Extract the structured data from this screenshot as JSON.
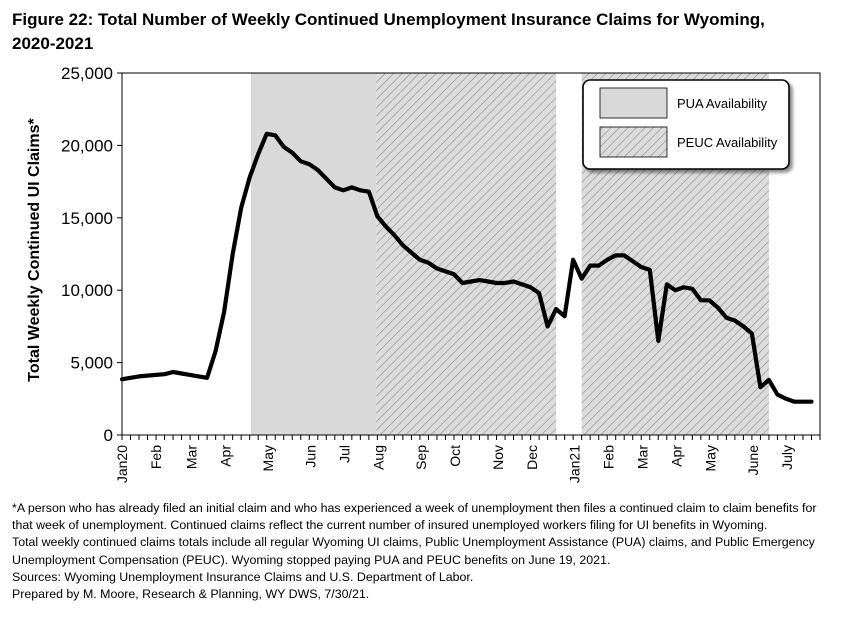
{
  "title": "Figure 22: Total Number of Weekly Continued Unemployment Insurance Claims for Wyoming, 2020-2021",
  "chart_data": {
    "type": "line",
    "ylabel": "Total Weekly Continued UI Claims*",
    "xlabel": "",
    "ylim": [
      0,
      25000
    ],
    "yticks": [
      0,
      5000,
      10000,
      15000,
      20000,
      25000
    ],
    "ytick_labels": [
      "0",
      "5,000",
      "10,000",
      "15,000",
      "20,000",
      "25,000"
    ],
    "xlim": [
      "2020-01-04",
      "2021-07-31"
    ],
    "month_ticks": [
      {
        "label": "Jan20",
        "date": "2020-01-04"
      },
      {
        "label": "Feb",
        "date": "2020-02-01"
      },
      {
        "label": "Mar",
        "date": "2020-03-01"
      },
      {
        "label": "Apr",
        "date": "2020-03-29"
      },
      {
        "label": "May",
        "date": "2020-05-03"
      },
      {
        "label": "Jun",
        "date": "2020-06-07"
      },
      {
        "label": "Jul",
        "date": "2020-07-05"
      },
      {
        "label": "Aug",
        "date": "2020-08-02"
      },
      {
        "label": "Sep",
        "date": "2020-09-06"
      },
      {
        "label": "Oct",
        "date": "2020-10-04"
      },
      {
        "label": "Nov",
        "date": "2020-11-08"
      },
      {
        "label": "Dec",
        "date": "2020-12-06"
      },
      {
        "label": "Jan21",
        "date": "2021-01-10"
      },
      {
        "label": "Feb",
        "date": "2021-02-07"
      },
      {
        "label": "Mar",
        "date": "2021-03-07"
      },
      {
        "label": "Apr",
        "date": "2021-04-04"
      },
      {
        "label": "May",
        "date": "2021-05-02"
      },
      {
        "label": "June",
        "date": "2021-06-06"
      },
      {
        "label": "July",
        "date": "2021-07-04"
      }
    ],
    "shaded_regions": [
      {
        "name": "PUA Availability",
        "start": "2020-04-19",
        "end": "2020-07-31",
        "pattern": "solid"
      },
      {
        "name": "PEUC Availability",
        "start": "2020-07-31",
        "end": "2020-12-26",
        "pattern": "hatch"
      },
      {
        "name": "PEUC Availability",
        "start": "2021-01-16",
        "end": "2021-06-19",
        "pattern": "hatch"
      }
    ],
    "legend": {
      "placement": "top-right",
      "items": [
        {
          "label": "PUA Availability",
          "pattern": "solid"
        },
        {
          "label": "PEUC Availability",
          "pattern": "hatch"
        }
      ]
    },
    "colors": {
      "line": "#000000",
      "pua_fill": "#d9d9d9",
      "peuc_fill": "#dcdcdc",
      "hatch": "#8c8c8c"
    },
    "series": [
      {
        "x": [
          "2020-01-04",
          "2020-01-11",
          "2020-01-18",
          "2020-01-25",
          "2020-02-01",
          "2020-02-08",
          "2020-02-15",
          "2020-02-22",
          "2020-02-29",
          "2020-03-07",
          "2020-03-14",
          "2020-03-21",
          "2020-03-28",
          "2020-04-04",
          "2020-04-11",
          "2020-04-18",
          "2020-04-25",
          "2020-05-02",
          "2020-05-09",
          "2020-05-16",
          "2020-05-23",
          "2020-05-30",
          "2020-06-06",
          "2020-06-13",
          "2020-06-20",
          "2020-06-27",
          "2020-07-04",
          "2020-07-11",
          "2020-07-18",
          "2020-07-25",
          "2020-08-01",
          "2020-08-08",
          "2020-08-15",
          "2020-08-22",
          "2020-08-29",
          "2020-09-05",
          "2020-09-12",
          "2020-09-19",
          "2020-09-26",
          "2020-10-03",
          "2020-10-10",
          "2020-10-17",
          "2020-10-24",
          "2020-10-31",
          "2020-11-07",
          "2020-11-14",
          "2020-11-21",
          "2020-11-28",
          "2020-12-05",
          "2020-12-12",
          "2020-12-19",
          "2020-12-26",
          "2021-01-02",
          "2021-01-09",
          "2021-01-16",
          "2021-01-23",
          "2021-01-30",
          "2021-02-06",
          "2021-02-13",
          "2021-02-20",
          "2021-02-27",
          "2021-03-06",
          "2021-03-13",
          "2021-03-20",
          "2021-03-27",
          "2021-04-03",
          "2021-04-10",
          "2021-04-17",
          "2021-04-24",
          "2021-05-01",
          "2021-05-08",
          "2021-05-15",
          "2021-05-22",
          "2021-05-29",
          "2021-06-05",
          "2021-06-12",
          "2021-06-19",
          "2021-06-26",
          "2021-07-03",
          "2021-07-10",
          "2021-07-17",
          "2021-07-24"
        ],
        "values": [
          3850,
          3950,
          4050,
          4100,
          4150,
          4200,
          4350,
          4250,
          4150,
          4050,
          3950,
          5800,
          8500,
          12500,
          15700,
          17800,
          19400,
          20800,
          20700,
          19900,
          19500,
          18900,
          18700,
          18300,
          17700,
          17100,
          16900,
          17100,
          16900,
          16800,
          15100,
          14400,
          13800,
          13100,
          12600,
          12100,
          11900,
          11500,
          11300,
          11100,
          10500,
          10600,
          10700,
          10600,
          10500,
          10500,
          10600,
          10400,
          10200,
          9800,
          7500,
          8700,
          8200,
          12100,
          10800,
          11700,
          11700,
          12100,
          12400,
          12400,
          12000,
          11600,
          11400,
          6500,
          10400,
          10000,
          10200,
          10100,
          9300,
          9300,
          8800,
          8100,
          7900,
          7500,
          7000,
          3300,
          3800,
          2800,
          2500,
          2300,
          2300,
          2300
        ]
      }
    ]
  },
  "notes": [
    "*A person who has already filed an initial claim and who has experienced a week of unemployment then files a continued claim to claim benefits for that week of unemployment. Continued claims reflect the current number of insured unemployed workers filing for UI benefits in Wyoming.",
    "Total weekly continued claims totals include all regular Wyoming UI claims, Public Unemployment Assistance (PUA) claims, and Public Emergency Unemployment Compensation (PEUC). Wyoming stopped paying PUA and PEUC benefits on June 19, 2021.",
    "Sources: Wyoming Unemployment Insurance Claims and U.S. Department of Labor.",
    "Prepared by M. Moore, Research & Planning, WY DWS, 7/30/21."
  ]
}
